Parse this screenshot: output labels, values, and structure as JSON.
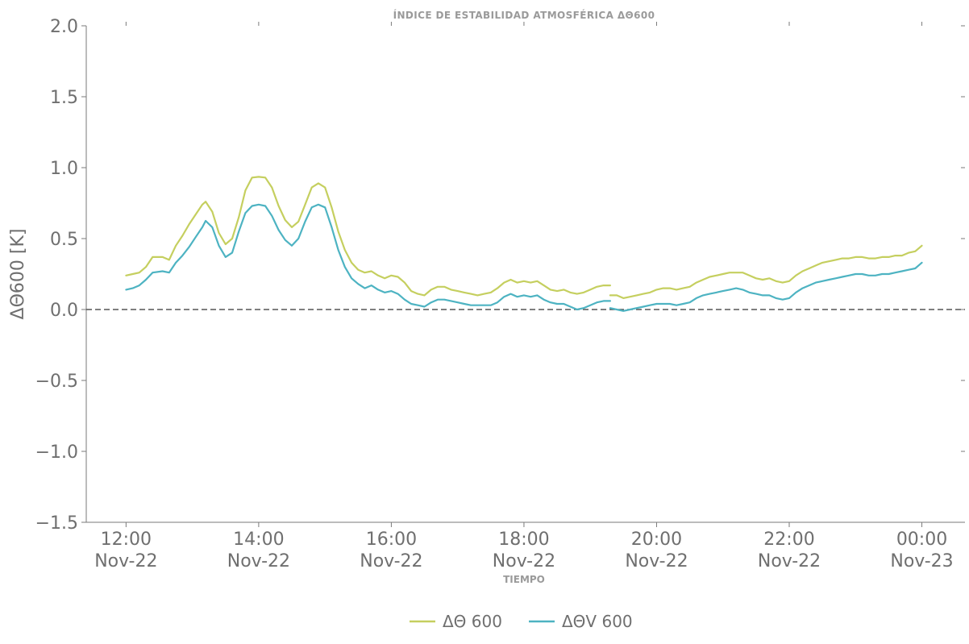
{
  "chart_data": {
    "type": "line",
    "title": "ÍNDICE DE ESTABILIDAD ATMOSFÉRICA ΔΘ600",
    "xlabel": "TIEMPO",
    "ylabel": "ΔΘ600 [K]",
    "ylim": [
      -1.5,
      2.0
    ],
    "yticks": [
      -1.5,
      -1.0,
      -0.5,
      0.0,
      0.5,
      1.0,
      1.5,
      2.0
    ],
    "ytick_labels": [
      "−1.5",
      "−1.0",
      "−0.5",
      "0.0",
      "0.5",
      "1.0",
      "1.5",
      "2.0"
    ],
    "xlim_hours": [
      11.4,
      24.65
    ],
    "xticks": [
      {
        "hour": 12,
        "line1": "12:00",
        "line2": "Nov-22"
      },
      {
        "hour": 14,
        "line1": "14:00",
        "line2": "Nov-22"
      },
      {
        "hour": 16,
        "line1": "16:00",
        "line2": "Nov-22"
      },
      {
        "hour": 18,
        "line1": "18:00",
        "line2": "Nov-22"
      },
      {
        "hour": 20,
        "line1": "20:00",
        "line2": "Nov-22"
      },
      {
        "hour": 22,
        "line1": "22:00",
        "line2": "Nov-22"
      },
      {
        "hour": 24,
        "line1": "00:00",
        "line2": "Nov-23"
      }
    ],
    "reference_line": {
      "y": 0.0,
      "style": "dashed",
      "color": "#555555"
    },
    "grid": false,
    "legend_position": "bottom-center",
    "series": [
      {
        "name": "ΔΘ 600",
        "color": "#c5cf5f",
        "segments": [
          [
            [
              12.0,
              0.24
            ],
            [
              12.1,
              0.25
            ],
            [
              12.2,
              0.26
            ],
            [
              12.3,
              0.3
            ],
            [
              12.4,
              0.37
            ],
            [
              12.55,
              0.37
            ],
            [
              12.65,
              0.35
            ],
            [
              12.75,
              0.45
            ],
            [
              12.85,
              0.52
            ],
            [
              12.95,
              0.6
            ],
            [
              13.05,
              0.67
            ],
            [
              13.15,
              0.74
            ],
            [
              13.2,
              0.76
            ],
            [
              13.3,
              0.69
            ],
            [
              13.4,
              0.54
            ],
            [
              13.5,
              0.46
            ],
            [
              13.6,
              0.5
            ],
            [
              13.7,
              0.65
            ],
            [
              13.8,
              0.84
            ],
            [
              13.9,
              0.93
            ],
            [
              14.0,
              0.935
            ],
            [
              14.1,
              0.93
            ],
            [
              14.2,
              0.86
            ],
            [
              14.3,
              0.73
            ],
            [
              14.4,
              0.63
            ],
            [
              14.5,
              0.58
            ],
            [
              14.6,
              0.62
            ],
            [
              14.7,
              0.74
            ],
            [
              14.8,
              0.86
            ],
            [
              14.9,
              0.89
            ],
            [
              15.0,
              0.86
            ],
            [
              15.1,
              0.72
            ],
            [
              15.2,
              0.55
            ],
            [
              15.3,
              0.42
            ],
            [
              15.4,
              0.33
            ],
            [
              15.5,
              0.28
            ],
            [
              15.6,
              0.26
            ],
            [
              15.7,
              0.27
            ],
            [
              15.8,
              0.24
            ],
            [
              15.9,
              0.22
            ],
            [
              16.0,
              0.24
            ],
            [
              16.1,
              0.23
            ],
            [
              16.2,
              0.19
            ],
            [
              16.3,
              0.13
            ],
            [
              16.4,
              0.11
            ],
            [
              16.5,
              0.1
            ],
            [
              16.6,
              0.14
            ],
            [
              16.7,
              0.16
            ],
            [
              16.8,
              0.16
            ],
            [
              16.9,
              0.14
            ],
            [
              17.0,
              0.13
            ],
            [
              17.1,
              0.12
            ],
            [
              17.2,
              0.11
            ],
            [
              17.3,
              0.1
            ],
            [
              17.4,
              0.11
            ],
            [
              17.5,
              0.12
            ],
            [
              17.6,
              0.15
            ],
            [
              17.7,
              0.19
            ],
            [
              17.8,
              0.21
            ],
            [
              17.9,
              0.19
            ],
            [
              18.0,
              0.2
            ],
            [
              18.1,
              0.19
            ],
            [
              18.2,
              0.2
            ],
            [
              18.3,
              0.17
            ],
            [
              18.4,
              0.14
            ],
            [
              18.5,
              0.13
            ],
            [
              18.6,
              0.14
            ],
            [
              18.7,
              0.12
            ],
            [
              18.8,
              0.11
            ],
            [
              18.9,
              0.12
            ],
            [
              19.0,
              0.14
            ],
            [
              19.1,
              0.16
            ],
            [
              19.2,
              0.17
            ],
            [
              19.3,
              0.17
            ]
          ],
          [
            [
              19.3,
              0.1
            ],
            [
              19.4,
              0.1
            ],
            [
              19.5,
              0.08
            ],
            [
              19.6,
              0.09
            ],
            [
              19.7,
              0.1
            ],
            [
              19.8,
              0.11
            ],
            [
              19.9,
              0.12
            ],
            [
              20.0,
              0.14
            ],
            [
              20.1,
              0.15
            ],
            [
              20.2,
              0.15
            ],
            [
              20.3,
              0.14
            ],
            [
              20.4,
              0.15
            ],
            [
              20.5,
              0.16
            ],
            [
              20.6,
              0.19
            ],
            [
              20.7,
              0.21
            ],
            [
              20.8,
              0.23
            ],
            [
              20.9,
              0.24
            ],
            [
              21.0,
              0.25
            ],
            [
              21.1,
              0.26
            ],
            [
              21.2,
              0.26
            ],
            [
              21.3,
              0.26
            ],
            [
              21.4,
              0.24
            ],
            [
              21.5,
              0.22
            ],
            [
              21.6,
              0.21
            ],
            [
              21.7,
              0.22
            ],
            [
              21.8,
              0.2
            ],
            [
              21.9,
              0.19
            ],
            [
              22.0,
              0.2
            ],
            [
              22.1,
              0.24
            ],
            [
              22.2,
              0.27
            ],
            [
              22.3,
              0.29
            ],
            [
              22.4,
              0.31
            ],
            [
              22.5,
              0.33
            ],
            [
              22.6,
              0.34
            ],
            [
              22.7,
              0.35
            ],
            [
              22.8,
              0.36
            ],
            [
              22.9,
              0.36
            ],
            [
              23.0,
              0.37
            ],
            [
              23.1,
              0.37
            ],
            [
              23.2,
              0.36
            ],
            [
              23.3,
              0.36
            ],
            [
              23.4,
              0.37
            ],
            [
              23.5,
              0.37
            ],
            [
              23.6,
              0.38
            ],
            [
              23.7,
              0.38
            ],
            [
              23.8,
              0.4
            ],
            [
              23.9,
              0.41
            ],
            [
              24.0,
              0.45
            ]
          ]
        ]
      },
      {
        "name": "ΔΘV 600",
        "color": "#4db3c2",
        "segments": [
          [
            [
              12.0,
              0.14
            ],
            [
              12.1,
              0.15
            ],
            [
              12.2,
              0.17
            ],
            [
              12.3,
              0.21
            ],
            [
              12.4,
              0.26
            ],
            [
              12.55,
              0.27
            ],
            [
              12.65,
              0.26
            ],
            [
              12.75,
              0.33
            ],
            [
              12.85,
              0.38
            ],
            [
              12.95,
              0.44
            ],
            [
              13.05,
              0.51
            ],
            [
              13.15,
              0.58
            ],
            [
              13.2,
              0.625
            ],
            [
              13.3,
              0.58
            ],
            [
              13.4,
              0.45
            ],
            [
              13.5,
              0.37
            ],
            [
              13.6,
              0.4
            ],
            [
              13.7,
              0.55
            ],
            [
              13.8,
              0.68
            ],
            [
              13.9,
              0.73
            ],
            [
              14.0,
              0.74
            ],
            [
              14.1,
              0.73
            ],
            [
              14.2,
              0.66
            ],
            [
              14.3,
              0.56
            ],
            [
              14.4,
              0.49
            ],
            [
              14.5,
              0.45
            ],
            [
              14.6,
              0.5
            ],
            [
              14.7,
              0.62
            ],
            [
              14.8,
              0.72
            ],
            [
              14.9,
              0.74
            ],
            [
              15.0,
              0.72
            ],
            [
              15.1,
              0.58
            ],
            [
              15.2,
              0.42
            ],
            [
              15.3,
              0.3
            ],
            [
              15.4,
              0.22
            ],
            [
              15.5,
              0.18
            ],
            [
              15.6,
              0.15
            ],
            [
              15.7,
              0.17
            ],
            [
              15.8,
              0.14
            ],
            [
              15.9,
              0.12
            ],
            [
              16.0,
              0.13
            ],
            [
              16.1,
              0.11
            ],
            [
              16.2,
              0.07
            ],
            [
              16.3,
              0.04
            ],
            [
              16.4,
              0.03
            ],
            [
              16.5,
              0.02
            ],
            [
              16.6,
              0.05
            ],
            [
              16.7,
              0.07
            ],
            [
              16.8,
              0.07
            ],
            [
              16.9,
              0.06
            ],
            [
              17.0,
              0.05
            ],
            [
              17.1,
              0.04
            ],
            [
              17.2,
              0.03
            ],
            [
              17.3,
              0.03
            ],
            [
              17.4,
              0.03
            ],
            [
              17.5,
              0.03
            ],
            [
              17.6,
              0.05
            ],
            [
              17.7,
              0.09
            ],
            [
              17.8,
              0.11
            ],
            [
              17.9,
              0.09
            ],
            [
              18.0,
              0.1
            ],
            [
              18.1,
              0.09
            ],
            [
              18.2,
              0.1
            ],
            [
              18.3,
              0.07
            ],
            [
              18.4,
              0.05
            ],
            [
              18.5,
              0.04
            ],
            [
              18.6,
              0.04
            ],
            [
              18.7,
              0.02
            ],
            [
              18.8,
              0.0
            ],
            [
              18.9,
              0.01
            ],
            [
              19.0,
              0.03
            ],
            [
              19.1,
              0.05
            ],
            [
              19.2,
              0.06
            ],
            [
              19.3,
              0.06
            ]
          ],
          [
            [
              19.3,
              0.01
            ],
            [
              19.4,
              0.0
            ],
            [
              19.5,
              -0.01
            ],
            [
              19.6,
              0.0
            ],
            [
              19.7,
              0.01
            ],
            [
              19.8,
              0.02
            ],
            [
              19.9,
              0.03
            ],
            [
              20.0,
              0.04
            ],
            [
              20.1,
              0.04
            ],
            [
              20.2,
              0.04
            ],
            [
              20.3,
              0.03
            ],
            [
              20.4,
              0.04
            ],
            [
              20.5,
              0.05
            ],
            [
              20.6,
              0.08
            ],
            [
              20.7,
              0.1
            ],
            [
              20.8,
              0.11
            ],
            [
              20.9,
              0.12
            ],
            [
              21.0,
              0.13
            ],
            [
              21.1,
              0.14
            ],
            [
              21.2,
              0.15
            ],
            [
              21.3,
              0.14
            ],
            [
              21.4,
              0.12
            ],
            [
              21.5,
              0.11
            ],
            [
              21.6,
              0.1
            ],
            [
              21.7,
              0.1
            ],
            [
              21.8,
              0.08
            ],
            [
              21.9,
              0.07
            ],
            [
              22.0,
              0.08
            ],
            [
              22.1,
              0.12
            ],
            [
              22.2,
              0.15
            ],
            [
              22.3,
              0.17
            ],
            [
              22.4,
              0.19
            ],
            [
              22.5,
              0.2
            ],
            [
              22.6,
              0.21
            ],
            [
              22.7,
              0.22
            ],
            [
              22.8,
              0.23
            ],
            [
              22.9,
              0.24
            ],
            [
              23.0,
              0.25
            ],
            [
              23.1,
              0.25
            ],
            [
              23.2,
              0.24
            ],
            [
              23.3,
              0.24
            ],
            [
              23.4,
              0.25
            ],
            [
              23.5,
              0.25
            ],
            [
              23.6,
              0.26
            ],
            [
              23.7,
              0.27
            ],
            [
              23.8,
              0.28
            ],
            [
              23.9,
              0.29
            ],
            [
              24.0,
              0.33
            ]
          ]
        ]
      }
    ]
  }
}
